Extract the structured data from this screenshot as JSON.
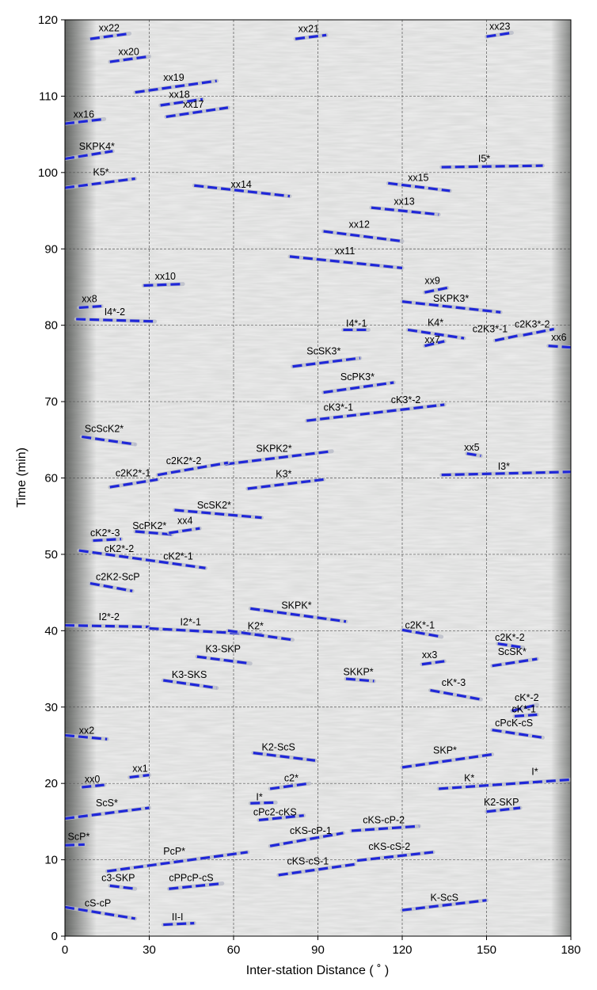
{
  "chart_data": {
    "type": "line",
    "xlabel": "Inter-station Distance ( ˚ )",
    "ylabel": "Time (min)",
    "xlim": [
      0,
      180
    ],
    "ylim": [
      0,
      120
    ],
    "xticks": [
      0,
      30,
      60,
      90,
      120,
      150,
      180
    ],
    "yticks": [
      0,
      10,
      20,
      30,
      40,
      50,
      60,
      70,
      80,
      90,
      100,
      110,
      120
    ],
    "grid": true,
    "series_color": "#1f27d8",
    "segments": [
      {
        "x": [
          9,
          23
        ],
        "y": [
          117.5,
          118.2
        ]
      },
      {
        "x": [
          16,
          30
        ],
        "y": [
          114.5,
          115.2
        ]
      },
      {
        "x": [
          25,
          54
        ],
        "y": [
          110.5,
          112.0
        ]
      },
      {
        "x": [
          34,
          49
        ],
        "y": [
          108.8,
          109.6
        ]
      },
      {
        "x": [
          36,
          58
        ],
        "y": [
          107.3,
          108.5
        ]
      },
      {
        "x": [
          0,
          14
        ],
        "y": [
          106.4,
          107.0
        ]
      },
      {
        "x": [
          82,
          93
        ],
        "y": [
          117.5,
          118.0
        ]
      },
      {
        "x": [
          150,
          159
        ],
        "y": [
          117.8,
          118.3
        ]
      },
      {
        "x": [
          0,
          17
        ],
        "y": [
          101.8,
          102.8
        ]
      },
      {
        "x": [
          0,
          25
        ],
        "y": [
          98.0,
          99.2
        ]
      },
      {
        "x": [
          46,
          80
        ],
        "y": [
          98.3,
          96.9
        ]
      },
      {
        "x": [
          134,
          170
        ],
        "y": [
          100.7,
          100.9
        ]
      },
      {
        "x": [
          115,
          137
        ],
        "y": [
          98.6,
          97.6
        ]
      },
      {
        "x": [
          109,
          133
        ],
        "y": [
          95.4,
          94.5
        ]
      },
      {
        "x": [
          92,
          120
        ],
        "y": [
          92.3,
          91.0
        ]
      },
      {
        "x": [
          80,
          120
        ],
        "y": [
          89.0,
          87.5
        ]
      },
      {
        "x": [
          28,
          42
        ],
        "y": [
          85.2,
          85.4
        ]
      },
      {
        "x": [
          128,
          136
        ],
        "y": [
          84.3,
          84.9
        ]
      },
      {
        "x": [
          5,
          13
        ],
        "y": [
          82.3,
          82.5
        ]
      },
      {
        "x": [
          120,
          155
        ],
        "y": [
          83.1,
          81.7
        ]
      },
      {
        "x": [
          4,
          32
        ],
        "y": [
          80.8,
          80.5
        ]
      },
      {
        "x": [
          99,
          108
        ],
        "y": [
          79.4,
          79.4
        ]
      },
      {
        "x": [
          122,
          142
        ],
        "y": [
          79.4,
          78.3
        ]
      },
      {
        "x": [
          128,
          135
        ],
        "y": [
          77.3,
          77.9
        ]
      },
      {
        "x": [
          153,
          162
        ],
        "y": [
          78.0,
          78.7
        ]
      },
      {
        "x": [
          163,
          174
        ],
        "y": [
          78.7,
          79.5
        ]
      },
      {
        "x": [
          172,
          180
        ],
        "y": [
          77.3,
          77.1
        ]
      },
      {
        "x": [
          81,
          105
        ],
        "y": [
          74.6,
          75.7
        ]
      },
      {
        "x": [
          92,
          117
        ],
        "y": [
          71.2,
          72.5
        ]
      },
      {
        "x": [
          86,
          135
        ],
        "y": [
          67.5,
          69.6
        ]
      },
      {
        "x": [
          6,
          25
        ],
        "y": [
          65.4,
          64.4
        ]
      },
      {
        "x": [
          143,
          148
        ],
        "y": [
          63.2,
          62.9
        ]
      },
      {
        "x": [
          134,
          180
        ],
        "y": [
          60.4,
          60.8
        ]
      },
      {
        "x": [
          57,
          95
        ],
        "y": [
          61.8,
          63.5
        ]
      },
      {
        "x": [
          16,
          33
        ],
        "y": [
          58.8,
          59.8
        ]
      },
      {
        "x": [
          33,
          58
        ],
        "y": [
          60.4,
          62.0
        ]
      },
      {
        "x": [
          65,
          92
        ],
        "y": [
          58.6,
          59.8
        ]
      },
      {
        "x": [
          39,
          70
        ],
        "y": [
          55.8,
          54.8
        ]
      },
      {
        "x": [
          25,
          38
        ],
        "y": [
          53.0,
          52.6
        ]
      },
      {
        "x": [
          37,
          48
        ],
        "y": [
          52.8,
          53.4
        ]
      },
      {
        "x": [
          10,
          20
        ],
        "y": [
          51.8,
          52.0
        ]
      },
      {
        "x": [
          5,
          50
        ],
        "y": [
          50.5,
          48.2
        ]
      },
      {
        "x": [
          9,
          24
        ],
        "y": [
          46.2,
          45.2
        ]
      },
      {
        "x": [
          66,
          100
        ],
        "y": [
          42.9,
          41.2
        ]
      },
      {
        "x": [
          0,
          30
        ],
        "y": [
          40.7,
          40.5
        ]
      },
      {
        "x": [
          30,
          70
        ],
        "y": [
          40.3,
          39.5
        ]
      },
      {
        "x": [
          58,
          81
        ],
        "y": [
          40.0,
          38.8
        ]
      },
      {
        "x": [
          120,
          134
        ],
        "y": [
          40.1,
          39.2
        ]
      },
      {
        "x": [
          154,
          163
        ],
        "y": [
          38.3,
          37.8
        ]
      },
      {
        "x": [
          152,
          168
        ],
        "y": [
          35.4,
          36.3
        ]
      },
      {
        "x": [
          47,
          66
        ],
        "y": [
          36.6,
          35.7
        ]
      },
      {
        "x": [
          35,
          54
        ],
        "y": [
          33.5,
          32.5
        ]
      },
      {
        "x": [
          100,
          110
        ],
        "y": [
          33.7,
          33.4
        ]
      },
      {
        "x": [
          127,
          135
        ],
        "y": [
          35.6,
          36.0
        ]
      },
      {
        "x": [
          130,
          148
        ],
        "y": [
          32.2,
          31.0
        ]
      },
      {
        "x": [
          159,
          168
        ],
        "y": [
          29.5,
          30.3
        ]
      },
      {
        "x": [
          160,
          168
        ],
        "y": [
          28.8,
          29.0
        ]
      },
      {
        "x": [
          152,
          170
        ],
        "y": [
          27.0,
          26.0
        ]
      },
      {
        "x": [
          0,
          15
        ],
        "y": [
          26.3,
          25.8
        ]
      },
      {
        "x": [
          67,
          89
        ],
        "y": [
          24.0,
          23.0
        ]
      },
      {
        "x": [
          120,
          152
        ],
        "y": [
          22.1,
          23.8
        ]
      },
      {
        "x": [
          23,
          30
        ],
        "y": [
          20.8,
          21.1
        ]
      },
      {
        "x": [
          6,
          14
        ],
        "y": [
          19.5,
          19.8
        ]
      },
      {
        "x": [
          73,
          87
        ],
        "y": [
          19.3,
          20.0
        ]
      },
      {
        "x": [
          133,
          180
        ],
        "y": [
          19.3,
          20.5
        ]
      },
      {
        "x": [
          66,
          75
        ],
        "y": [
          17.4,
          17.5
        ]
      },
      {
        "x": [
          0,
          30
        ],
        "y": [
          15.4,
          16.8
        ]
      },
      {
        "x": [
          69,
          85
        ],
        "y": [
          15.2,
          15.8
        ]
      },
      {
        "x": [
          150,
          162
        ],
        "y": [
          16.3,
          16.8
        ]
      },
      {
        "x": [
          73,
          99
        ],
        "y": [
          11.8,
          13.5
        ]
      },
      {
        "x": [
          102,
          126
        ],
        "y": [
          13.8,
          14.4
        ]
      },
      {
        "x": [
          0,
          7
        ],
        "y": [
          11.9,
          12.0
        ]
      },
      {
        "x": [
          15,
          65
        ],
        "y": [
          8.5,
          11.0
        ]
      },
      {
        "x": [
          76,
          103
        ],
        "y": [
          8.0,
          9.4
        ]
      },
      {
        "x": [
          104,
          131
        ],
        "y": [
          9.9,
          11.0
        ]
      },
      {
        "x": [
          16,
          25
        ],
        "y": [
          6.6,
          6.2
        ]
      },
      {
        "x": [
          37,
          56
        ],
        "y": [
          6.2,
          6.9
        ]
      },
      {
        "x": [
          0,
          25
        ],
        "y": [
          3.8,
          2.3
        ]
      },
      {
        "x": [
          120,
          150
        ],
        "y": [
          3.4,
          4.7
        ]
      },
      {
        "x": [
          35,
          46
        ],
        "y": [
          1.5,
          1.7
        ]
      }
    ],
    "labels": [
      {
        "text": "xx22",
        "x": 12,
        "y": 118.5
      },
      {
        "text": "xx20",
        "x": 19,
        "y": 115.4
      },
      {
        "text": "xx19",
        "x": 35,
        "y": 112.0
      },
      {
        "text": "xx18",
        "x": 37,
        "y": 109.8
      },
      {
        "text": "xx17",
        "x": 42,
        "y": 108.5
      },
      {
        "text": "xx16",
        "x": 3,
        "y": 107.2
      },
      {
        "text": "xx21",
        "x": 83,
        "y": 118.4
      },
      {
        "text": "xx23",
        "x": 151,
        "y": 118.7
      },
      {
        "text": "SKPK4*",
        "x": 5,
        "y": 103.0
      },
      {
        "text": "K5*",
        "x": 10,
        "y": 99.6
      },
      {
        "text": "xx14",
        "x": 59,
        "y": 98.0
      },
      {
        "text": "I5*",
        "x": 147,
        "y": 101.4
      },
      {
        "text": "xx15",
        "x": 122,
        "y": 98.9
      },
      {
        "text": "xx13",
        "x": 117,
        "y": 95.8
      },
      {
        "text": "xx12",
        "x": 101,
        "y": 92.8
      },
      {
        "text": "xx11",
        "x": 96,
        "y": 89.3
      },
      {
        "text": "xx10",
        "x": 32,
        "y": 86.0
      },
      {
        "text": "xx9",
        "x": 128,
        "y": 85.4
      },
      {
        "text": "xx8",
        "x": 6,
        "y": 83.0
      },
      {
        "text": "SKPK3*",
        "x": 131,
        "y": 83.1
      },
      {
        "text": "I4*-2",
        "x": 14,
        "y": 81.3
      },
      {
        "text": "I4*-1",
        "x": 100,
        "y": 79.8
      },
      {
        "text": "K4*",
        "x": 129,
        "y": 79.9
      },
      {
        "text": "xx7",
        "x": 128,
        "y": 77.7
      },
      {
        "text": "c2K3*-1",
        "x": 145,
        "y": 79.1
      },
      {
        "text": "c2K3*-2",
        "x": 160,
        "y": 79.7
      },
      {
        "text": "xx6",
        "x": 173,
        "y": 78.0
      },
      {
        "text": "ScSK3*",
        "x": 86,
        "y": 76.2
      },
      {
        "text": "ScPK3*",
        "x": 98,
        "y": 72.8
      },
      {
        "text": "cK3*-1",
        "x": 92,
        "y": 68.8
      },
      {
        "text": "cK3*-2",
        "x": 116,
        "y": 69.8
      },
      {
        "text": "ScScK2*",
        "x": 7,
        "y": 66.0
      },
      {
        "text": "xx5",
        "x": 142,
        "y": 63.6
      },
      {
        "text": "I3*",
        "x": 154,
        "y": 61.1
      },
      {
        "text": "SKPK2*",
        "x": 68,
        "y": 63.4
      },
      {
        "text": "c2K2*-1",
        "x": 18,
        "y": 60.2
      },
      {
        "text": "c2K2*-2",
        "x": 36,
        "y": 61.8
      },
      {
        "text": "K3*",
        "x": 75,
        "y": 60.1
      },
      {
        "text": "ScSK2*",
        "x": 47,
        "y": 56.0
      },
      {
        "text": "ScPK2*",
        "x": 24,
        "y": 53.3
      },
      {
        "text": "xx4",
        "x": 40,
        "y": 54.0
      },
      {
        "text": "cK2*-3",
        "x": 9,
        "y": 52.4
      },
      {
        "text": "cK2*-2",
        "x": 14,
        "y": 50.3
      },
      {
        "text": "cK2*-1",
        "x": 35,
        "y": 49.3
      },
      {
        "text": "c2K2-ScP",
        "x": 11,
        "y": 46.6
      },
      {
        "text": "SKPK*",
        "x": 77,
        "y": 42.9
      },
      {
        "text": "I2*-2",
        "x": 12,
        "y": 41.4
      },
      {
        "text": "I2*-1",
        "x": 41,
        "y": 40.7
      },
      {
        "text": "K2*",
        "x": 65,
        "y": 40.2
      },
      {
        "text": "c2K*-1",
        "x": 121,
        "y": 40.3
      },
      {
        "text": "c2K*-2",
        "x": 153,
        "y": 38.7
      },
      {
        "text": "ScSK*",
        "x": 154,
        "y": 36.8
      },
      {
        "text": "K3-SKP",
        "x": 50,
        "y": 37.2
      },
      {
        "text": "xx3",
        "x": 127,
        "y": 36.4
      },
      {
        "text": "K3-SKS",
        "x": 38,
        "y": 33.8
      },
      {
        "text": "SKKP*",
        "x": 99,
        "y": 34.2
      },
      {
        "text": "cK*-3",
        "x": 134,
        "y": 32.8
      },
      {
        "text": "cK*-2",
        "x": 160,
        "y": 30.8
      },
      {
        "text": "cK*-1",
        "x": 159,
        "y": 29.3
      },
      {
        "text": "cPcK-cS",
        "x": 153,
        "y": 27.5
      },
      {
        "text": "xx2",
        "x": 5,
        "y": 26.5
      },
      {
        "text": "K2-ScS",
        "x": 70,
        "y": 24.3
      },
      {
        "text": "SKP*",
        "x": 131,
        "y": 23.9
      },
      {
        "text": "xx1",
        "x": 24,
        "y": 21.5
      },
      {
        "text": "xx0",
        "x": 7,
        "y": 20.1
      },
      {
        "text": "c2*",
        "x": 78,
        "y": 20.3
      },
      {
        "text": "K*",
        "x": 142,
        "y": 20.3
      },
      {
        "text": "I*",
        "x": 166,
        "y": 21.1
      },
      {
        "text": "I*",
        "x": 68,
        "y": 17.8
      },
      {
        "text": "ScS*",
        "x": 11,
        "y": 17.0
      },
      {
        "text": "cPc2-cKS",
        "x": 67,
        "y": 15.8
      },
      {
        "text": "K2-SKP",
        "x": 149,
        "y": 17.1
      },
      {
        "text": "cKS-cP-1",
        "x": 80,
        "y": 13.4
      },
      {
        "text": "cKS-cP-2",
        "x": 106,
        "y": 14.8
      },
      {
        "text": "ScP*",
        "x": 1,
        "y": 12.6
      },
      {
        "text": "PcP*",
        "x": 35,
        "y": 10.7
      },
      {
        "text": "cKS-cS-1",
        "x": 79,
        "y": 9.4
      },
      {
        "text": "cKS-cS-2",
        "x": 108,
        "y": 11.3
      },
      {
        "text": "c3-SKP",
        "x": 13,
        "y": 7.2
      },
      {
        "text": "cPPcP-cS",
        "x": 37,
        "y": 7.2
      },
      {
        "text": "cS-cP",
        "x": 7,
        "y": 3.9
      },
      {
        "text": "K-ScS",
        "x": 130,
        "y": 4.6
      },
      {
        "text": "II-I",
        "x": 38,
        "y": 2.1
      }
    ]
  }
}
